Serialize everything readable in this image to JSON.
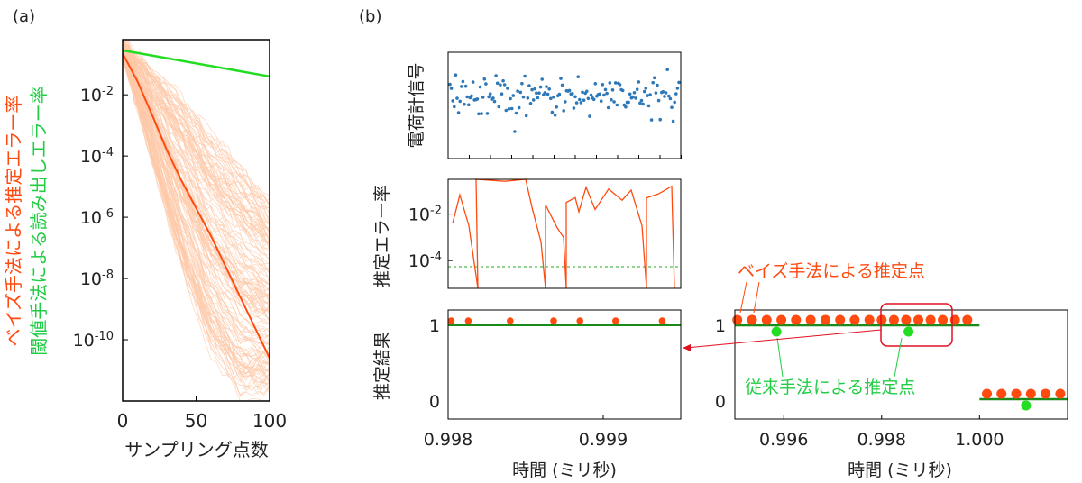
{
  "colors": {
    "bayes": "#ff4a10",
    "bayes_band": "#fdc9a8",
    "conventional": "#22dd22",
    "signal": "#2e78b8",
    "result_line": "#1a8a1a",
    "threshold": "#22aa22",
    "highlight": "#e01020",
    "axis": "#000000"
  },
  "panel_a": {
    "label": "(a)",
    "ylabel_line1": "ベイズ手法による推定エラー率",
    "ylabel_line2": "閾値手法による読み出しエラー率",
    "xlabel": "サンプリング点数"
  },
  "panel_b": {
    "label": "(b)",
    "top_ylabel": "電荷計信号",
    "mid_ylabel": "推定エラー率",
    "bot_ylabel": "推定結果",
    "xlabel_left": "時間 (ミリ秒)",
    "xlabel_right": "時間 (ミリ秒)",
    "annotation_bayes": "ベイズ手法による推定点",
    "annotation_conventional": "従来手法による推定点"
  },
  "chart_data": [
    {
      "type": "line",
      "panel": "a",
      "scale_y": "log",
      "xlim": [
        0,
        100
      ],
      "ylim_log10": [
        -12,
        -0.2
      ],
      "xticks": [
        "0",
        "50",
        "100"
      ],
      "yticks": [
        {
          "base": "10",
          "exp": "-2",
          "value": -2
        },
        {
          "base": "10",
          "exp": "-4",
          "value": -4
        },
        {
          "base": "10",
          "exp": "-6",
          "value": -6
        },
        {
          "base": "10",
          "exp": "-8",
          "value": -8
        },
        {
          "base": "10",
          "exp": "-10",
          "value": -10
        }
      ],
      "series": [
        {
          "key": "conventional",
          "x": [
            0,
            100
          ],
          "log10_y": [
            -0.55,
            -1.4
          ]
        },
        {
          "key": "bayes_mean",
          "x": [
            0,
            10,
            20,
            30,
            40,
            50,
            60,
            70,
            80,
            90,
            100
          ],
          "log10_y": [
            -0.65,
            -1.55,
            -2.65,
            -3.8,
            -4.8,
            -5.7,
            -6.6,
            -7.6,
            -8.6,
            -9.6,
            -10.6
          ]
        }
      ],
      "band": {
        "x": [
          0,
          20,
          40,
          60,
          80,
          100
        ],
        "log10_upper": [
          -0.2,
          -1.2,
          -2.1,
          -3.3,
          -4.3,
          -5.5
        ],
        "log10_lower": [
          -0.7,
          -4.2,
          -7.8,
          -10.5,
          -12,
          -12
        ]
      }
    },
    {
      "type": "scatter",
      "panel": "b-top",
      "points": 160
    },
    {
      "type": "line",
      "panel": "b-mid",
      "scale_y": "log",
      "yticks": [
        {
          "base": "10",
          "exp": "-2",
          "value": -2
        },
        {
          "base": "10",
          "exp": "-4",
          "value": -4
        }
      ],
      "threshold_log10": -4.3
    },
    {
      "type": "scatter",
      "panel": "b-bot-left",
      "xlim": [
        0.998,
        0.9995
      ],
      "xticks": [
        "0.998",
        "0.999"
      ],
      "yticks": [
        "1",
        "0"
      ],
      "bayes_x": [
        0.99802,
        0.99813,
        0.9984,
        0.99868,
        0.99885,
        0.99908,
        0.99938
      ],
      "bayes_y": [
        1,
        1,
        1,
        1,
        1,
        1,
        1
      ],
      "result_level": 1
    },
    {
      "type": "scatter",
      "panel": "b-bot-right",
      "xlim": [
        0.995,
        1.0018
      ],
      "xticks": [
        "0.996",
        "0.998",
        "1.000"
      ],
      "yticks": [
        "1",
        "0"
      ],
      "bayes_high_x": [
        0.99505,
        0.99535,
        0.99565,
        0.99595,
        0.99625,
        0.99655,
        0.99685,
        0.99715,
        0.99745,
        0.99775,
        0.998,
        0.99825,
        0.9985,
        0.99875,
        0.999,
        0.99925,
        0.9995,
        0.99975
      ],
      "bayes_low_x": [
        1.00015,
        1.00045,
        1.00075,
        1.00105,
        1.00135,
        1.00165
      ],
      "conventional": [
        {
          "x": 0.99585,
          "y": 1
        },
        {
          "x": 0.99855,
          "y": 1
        },
        {
          "x": 1.00095,
          "y": 0
        }
      ],
      "step_high": [
        0.995,
        1.0
      ],
      "step_low": [
        1.0,
        1.0018
      ]
    }
  ]
}
